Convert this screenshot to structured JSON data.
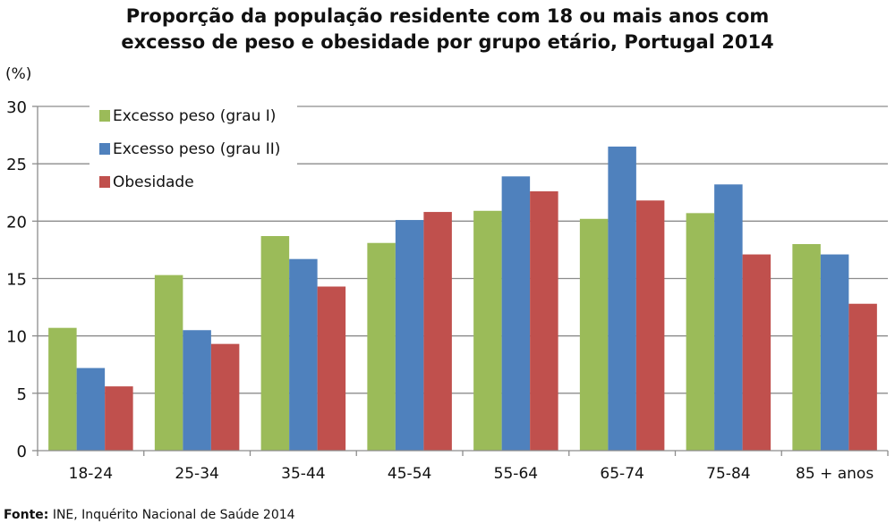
{
  "chart_data": {
    "type": "bar",
    "title_lines": [
      "Proporção da população residente com 18 ou mais anos com",
      "excesso de peso e obesidade por grupo etário, Portugal 2014"
    ],
    "ylabel": "(%)",
    "ylim": [
      0,
      30
    ],
    "yticks": [
      0,
      5,
      10,
      15,
      20,
      25,
      30
    ],
    "grid": true,
    "legend_placement": "top-left",
    "categories": [
      "18-24",
      "25-34",
      "35-44",
      "45-54",
      "55-64",
      "65-74",
      "75-84",
      "85 + anos"
    ],
    "series": [
      {
        "name": "Excesso peso (grau I)",
        "color": "#9bbb59",
        "values": [
          10.7,
          15.3,
          18.7,
          18.1,
          20.9,
          20.2,
          20.7,
          18.0
        ]
      },
      {
        "name": "Excesso peso (grau II)",
        "color": "#4f81bd",
        "values": [
          7.2,
          10.5,
          16.7,
          20.1,
          23.9,
          26.5,
          23.2,
          17.1
        ]
      },
      {
        "name": "Obesidade",
        "color": "#c0504d",
        "values": [
          5.6,
          9.3,
          14.3,
          20.8,
          22.6,
          21.8,
          17.1,
          12.8
        ]
      }
    ]
  },
  "source": {
    "label": "Fonte:",
    "text": " INE, Inquérito Nacional de Saúde 2014"
  }
}
